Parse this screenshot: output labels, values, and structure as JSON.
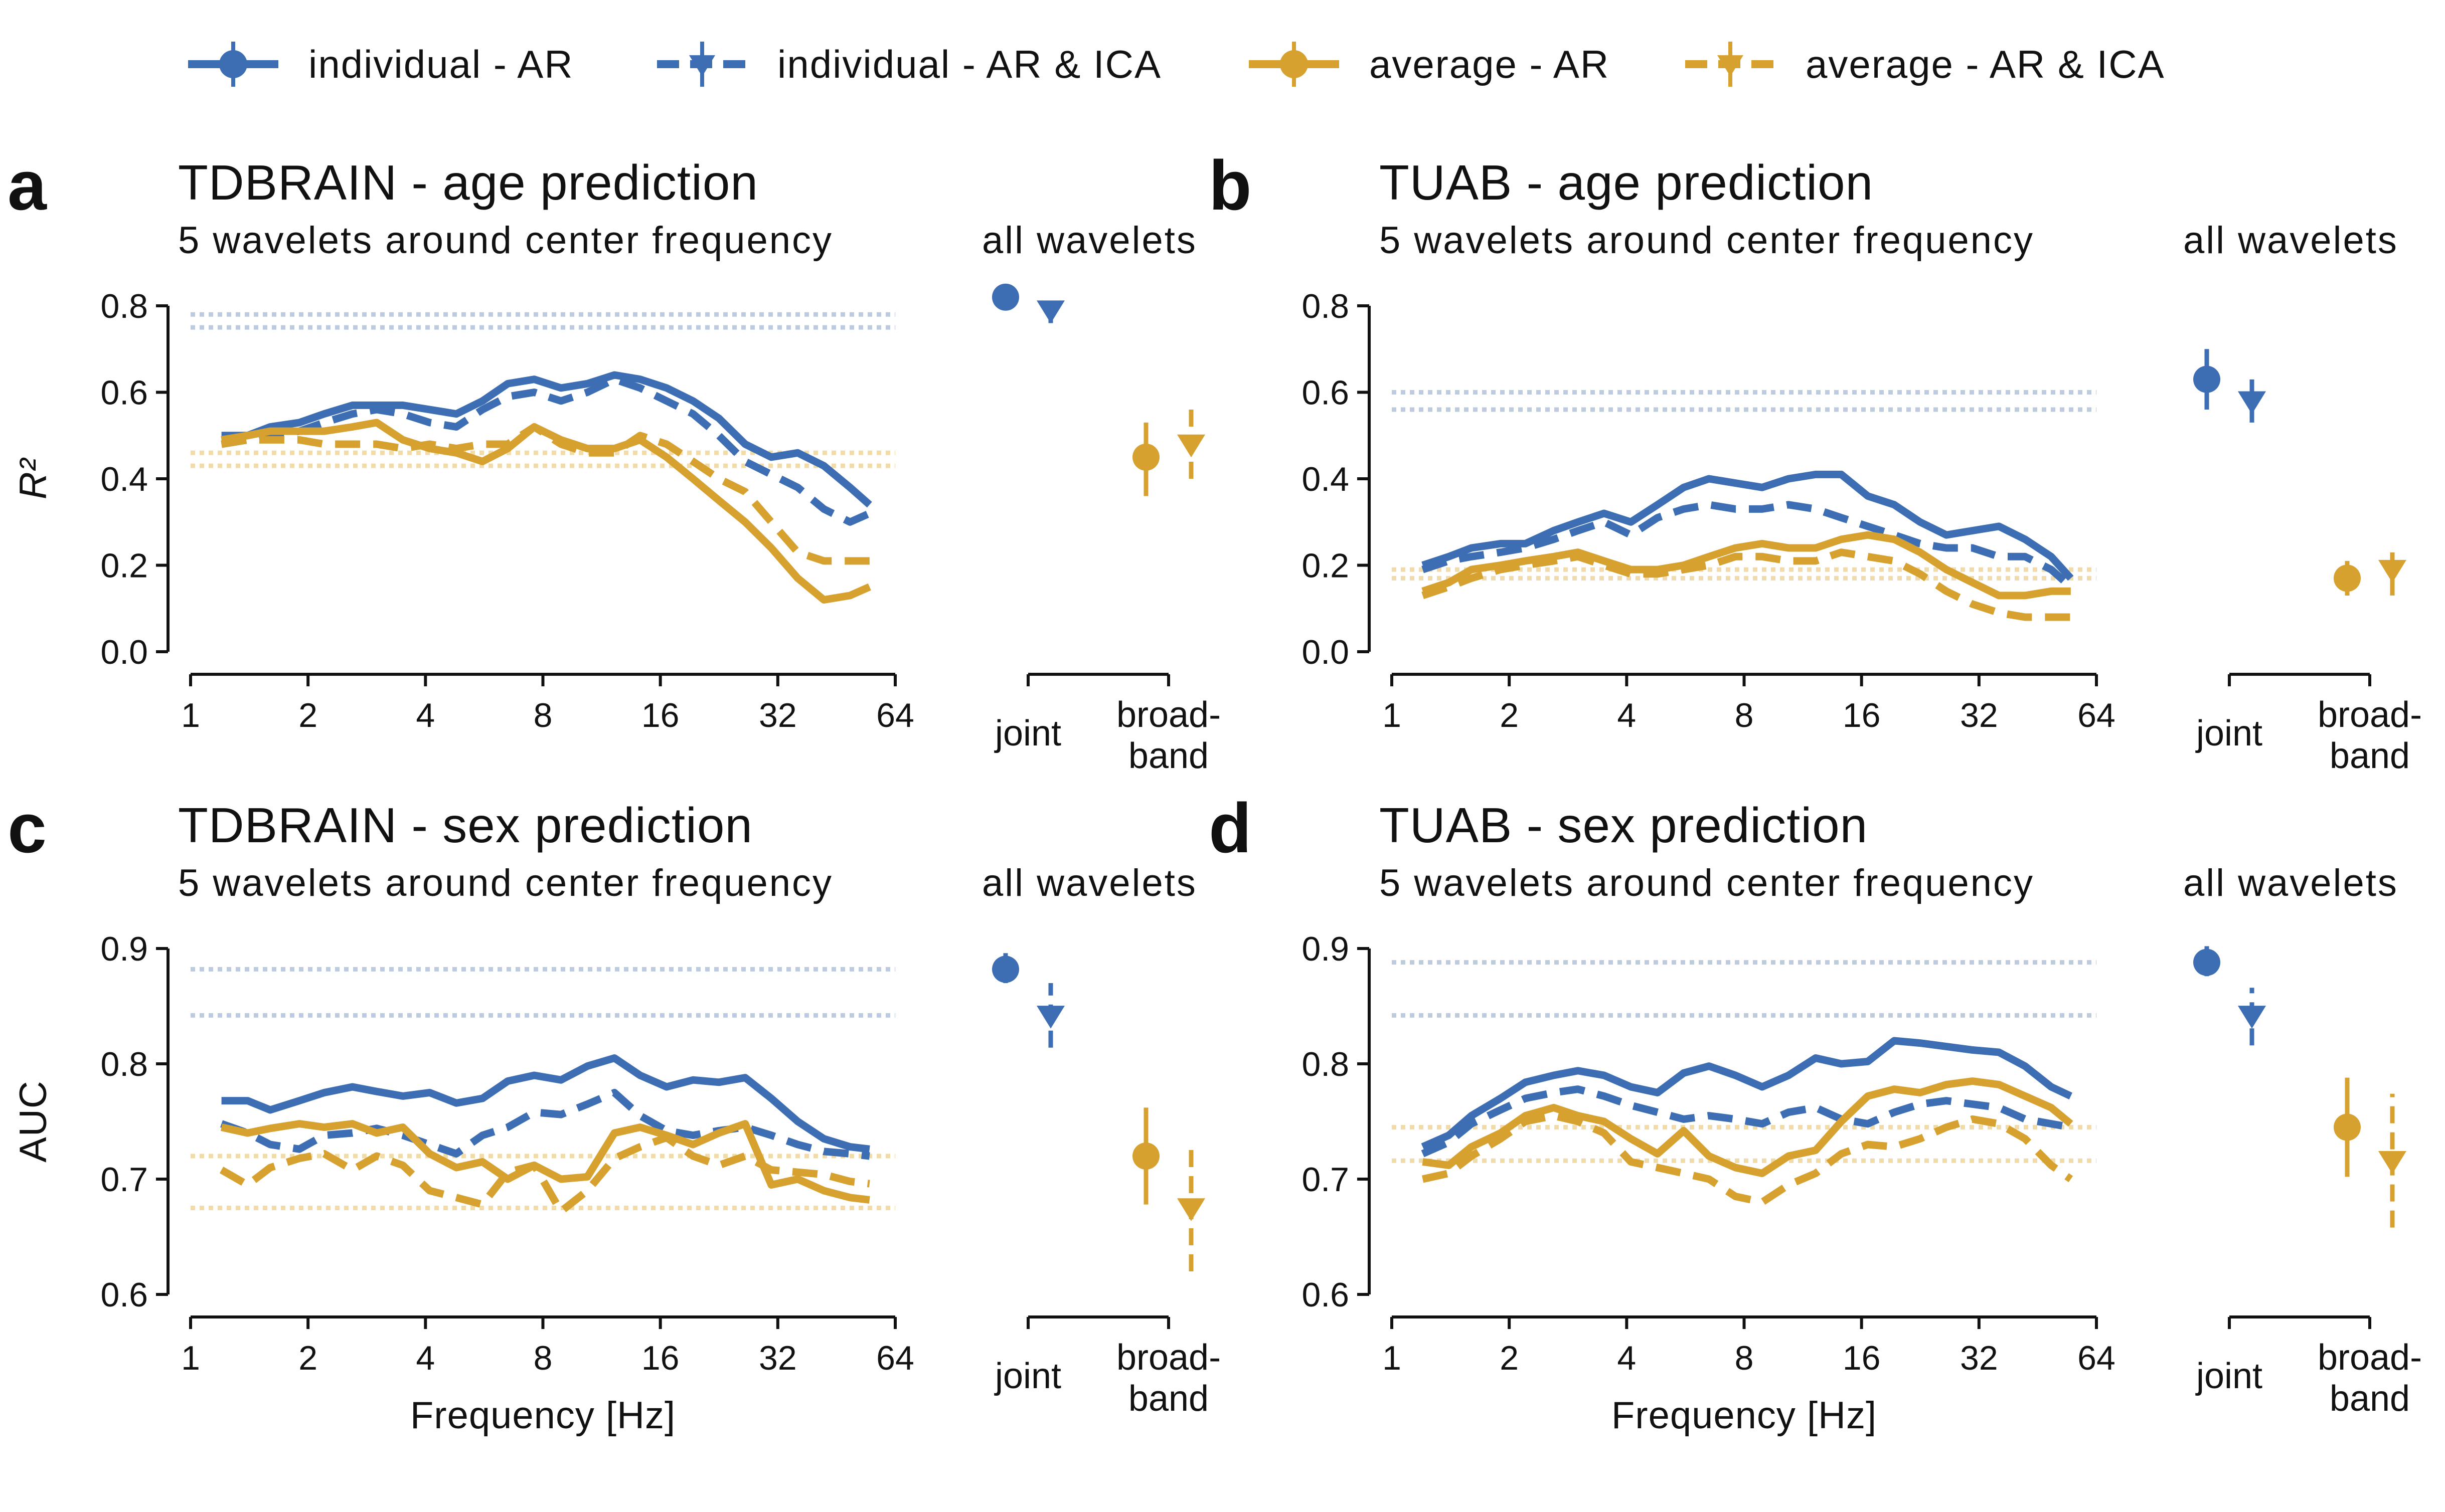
{
  "legend": {
    "items": [
      {
        "label": "individual - AR",
        "color": "#3d6eb4",
        "dash": "solid",
        "marker": "circle"
      },
      {
        "label": "individual - AR & ICA",
        "color": "#3d6eb4",
        "dash": "dashed",
        "marker": "triangle"
      },
      {
        "label": "average - AR",
        "color": "#d6a12f",
        "dash": "solid",
        "marker": "circle"
      },
      {
        "label": "average - AR & ICA",
        "color": "#d6a12f",
        "dash": "dashed",
        "marker": "triangle"
      }
    ]
  },
  "colors": {
    "individual": "#3d6eb4",
    "average": "#d6a12f",
    "individual_reference": "#bccbe0",
    "average_reference": "#f1dca9"
  },
  "common": {
    "subtitle_left": "5 wavelets around center frequency",
    "subtitle_right": "all wavelets",
    "xlabel": "Frequency [Hz]",
    "categories": [
      "joint",
      "broad-band"
    ],
    "category_lines": [
      [
        "joint"
      ],
      [
        "broad-",
        "band"
      ]
    ]
  },
  "chart_data": [
    {
      "panel": "a",
      "type": "line",
      "title": "TDBRAIN - age prediction",
      "ylabel": "R²",
      "xscale": "log2",
      "xlim": [
        1,
        64
      ],
      "xticks": [
        1,
        2,
        4,
        8,
        16,
        32,
        64
      ],
      "xtick_labels": [
        "1",
        "2",
        "4",
        "8",
        "16",
        "32",
        "64"
      ],
      "ylim": [
        0,
        0.8
      ],
      "yticks": [
        0.0,
        0.2,
        0.4,
        0.6,
        0.8
      ],
      "ytick_labels": [
        "0.0",
        "0.2",
        "0.4",
        "0.6",
        "0.8"
      ],
      "x": [
        1.2,
        1.4,
        1.6,
        1.9,
        2.2,
        2.6,
        3.0,
        3.5,
        4.1,
        4.8,
        5.6,
        6.5,
        7.6,
        8.9,
        10.4,
        12.2,
        14.2,
        16.6,
        19.4,
        22.6,
        26.4,
        30.8,
        36.0,
        42.0,
        49.0,
        55.0
      ],
      "series": [
        {
          "name": "individual - AR",
          "values": [
            0.5,
            0.5,
            0.52,
            0.53,
            0.55,
            0.57,
            0.57,
            0.57,
            0.56,
            0.55,
            0.58,
            0.62,
            0.63,
            0.61,
            0.62,
            0.64,
            0.63,
            0.61,
            0.58,
            0.54,
            0.48,
            0.45,
            0.46,
            0.43,
            0.38,
            0.34
          ]
        },
        {
          "name": "individual - AR & ICA",
          "values": [
            0.48,
            0.49,
            0.5,
            0.51,
            0.53,
            0.55,
            0.56,
            0.55,
            0.53,
            0.52,
            0.56,
            0.59,
            0.6,
            0.58,
            0.6,
            0.63,
            0.61,
            0.58,
            0.55,
            0.5,
            0.44,
            0.41,
            0.38,
            0.33,
            0.3,
            0.32
          ]
        },
        {
          "name": "average - AR",
          "values": [
            0.49,
            0.5,
            0.51,
            0.51,
            0.51,
            0.52,
            0.53,
            0.49,
            0.47,
            0.46,
            0.44,
            0.47,
            0.52,
            0.49,
            0.47,
            0.47,
            0.49,
            0.45,
            0.4,
            0.35,
            0.3,
            0.24,
            0.17,
            0.12,
            0.13,
            0.15
          ]
        },
        {
          "name": "average - AR & ICA",
          "values": [
            0.48,
            0.49,
            0.49,
            0.49,
            0.48,
            0.48,
            0.48,
            0.47,
            0.48,
            0.47,
            0.48,
            0.48,
            0.52,
            0.48,
            0.46,
            0.46,
            0.5,
            0.48,
            0.44,
            0.4,
            0.37,
            0.3,
            0.23,
            0.21,
            0.21,
            0.21
          ]
        }
      ],
      "reference_lines": [
        {
          "group": "individual",
          "value": 0.78
        },
        {
          "group": "individual",
          "value": 0.75
        },
        {
          "group": "average",
          "value": 0.46
        },
        {
          "group": "average",
          "value": 0.43
        }
      ],
      "all_wavelets": {
        "ylim": [
          0,
          0.8
        ],
        "points": [
          {
            "name": "individual - AR",
            "category": "joint",
            "value": 0.82,
            "err_low": 0.8,
            "err_high": 0.84
          },
          {
            "name": "individual - AR & ICA",
            "category": "joint",
            "value": 0.79,
            "err_low": 0.76,
            "err_high": 0.82
          },
          {
            "name": "average - AR",
            "category": "broad-band",
            "value": 0.45,
            "err_low": 0.36,
            "err_high": 0.53
          },
          {
            "name": "average - AR & ICA",
            "category": "broad-band",
            "value": 0.48,
            "err_low": 0.4,
            "err_high": 0.56
          }
        ]
      }
    },
    {
      "panel": "b",
      "type": "line",
      "title": "TUAB - age prediction",
      "ylabel": "",
      "xscale": "log2",
      "xlim": [
        1,
        64
      ],
      "xticks": [
        1,
        2,
        4,
        8,
        16,
        32,
        64
      ],
      "xtick_labels": [
        "1",
        "2",
        "4",
        "8",
        "16",
        "32",
        "64"
      ],
      "ylim": [
        0,
        0.8
      ],
      "yticks": [
        0.0,
        0.2,
        0.4,
        0.6,
        0.8
      ],
      "ytick_labels": [
        "0.0",
        "0.2",
        "0.4",
        "0.6",
        "0.8"
      ],
      "x": [
        1.2,
        1.4,
        1.6,
        1.9,
        2.2,
        2.6,
        3.0,
        3.5,
        4.1,
        4.8,
        5.6,
        6.5,
        7.6,
        8.9,
        10.4,
        12.2,
        14.2,
        16.6,
        19.4,
        22.6,
        26.4,
        30.8,
        36.0,
        42.0,
        49.0,
        55.0
      ],
      "series": [
        {
          "name": "individual - AR",
          "values": [
            0.2,
            0.22,
            0.24,
            0.25,
            0.25,
            0.28,
            0.3,
            0.32,
            0.3,
            0.34,
            0.38,
            0.4,
            0.39,
            0.38,
            0.4,
            0.41,
            0.41,
            0.36,
            0.34,
            0.3,
            0.27,
            0.28,
            0.29,
            0.26,
            0.22,
            0.17
          ]
        },
        {
          "name": "individual - AR & ICA",
          "values": [
            0.19,
            0.21,
            0.22,
            0.23,
            0.24,
            0.26,
            0.28,
            0.3,
            0.27,
            0.31,
            0.33,
            0.34,
            0.33,
            0.33,
            0.34,
            0.33,
            0.31,
            0.29,
            0.27,
            0.25,
            0.24,
            0.24,
            0.22,
            0.22,
            0.19,
            0.15
          ]
        },
        {
          "name": "average - AR",
          "values": [
            0.14,
            0.16,
            0.19,
            0.2,
            0.21,
            0.22,
            0.23,
            0.21,
            0.19,
            0.19,
            0.2,
            0.22,
            0.24,
            0.25,
            0.24,
            0.24,
            0.26,
            0.27,
            0.26,
            0.23,
            0.19,
            0.16,
            0.13,
            0.13,
            0.14,
            0.14
          ]
        },
        {
          "name": "average - AR & ICA",
          "values": [
            0.13,
            0.15,
            0.17,
            0.19,
            0.2,
            0.21,
            0.22,
            0.2,
            0.18,
            0.18,
            0.19,
            0.2,
            0.22,
            0.22,
            0.21,
            0.21,
            0.23,
            0.22,
            0.21,
            0.18,
            0.14,
            0.11,
            0.09,
            0.08,
            0.08,
            0.08
          ]
        }
      ],
      "reference_lines": [
        {
          "group": "individual",
          "value": 0.6
        },
        {
          "group": "individual",
          "value": 0.56
        },
        {
          "group": "average",
          "value": 0.19
        },
        {
          "group": "average",
          "value": 0.17
        }
      ],
      "all_wavelets": {
        "ylim": [
          0,
          0.8
        ],
        "points": [
          {
            "name": "individual - AR",
            "category": "joint",
            "value": 0.63,
            "err_low": 0.56,
            "err_high": 0.7
          },
          {
            "name": "individual - AR & ICA",
            "category": "joint",
            "value": 0.58,
            "err_low": 0.53,
            "err_high": 0.64
          },
          {
            "name": "average - AR",
            "category": "broad-band",
            "value": 0.17,
            "err_low": 0.13,
            "err_high": 0.21
          },
          {
            "name": "average - AR & ICA",
            "category": "broad-band",
            "value": 0.19,
            "err_low": 0.13,
            "err_high": 0.25
          }
        ]
      }
    },
    {
      "panel": "c",
      "type": "line",
      "title": "TDBRAIN - sex prediction",
      "ylabel": "AUC",
      "xlabel": "Frequency [Hz]",
      "xscale": "log2",
      "xlim": [
        1,
        64
      ],
      "xticks": [
        1,
        2,
        4,
        8,
        16,
        32,
        64
      ],
      "xtick_labels": [
        "1",
        "2",
        "4",
        "8",
        "16",
        "32",
        "64"
      ],
      "ylim": [
        0.6,
        0.9
      ],
      "yticks": [
        0.6,
        0.7,
        0.8,
        0.9
      ],
      "ytick_labels": [
        "0.6",
        "0.7",
        "0.8",
        "0.9"
      ],
      "x": [
        1.2,
        1.4,
        1.6,
        1.9,
        2.2,
        2.6,
        3.0,
        3.5,
        4.1,
        4.8,
        5.6,
        6.5,
        7.6,
        8.9,
        10.4,
        12.2,
        14.2,
        16.6,
        19.4,
        22.6,
        26.4,
        30.8,
        36.0,
        42.0,
        49.0,
        55.0
      ],
      "series": [
        {
          "name": "individual - AR",
          "values": [
            0.768,
            0.768,
            0.76,
            0.768,
            0.775,
            0.78,
            0.776,
            0.772,
            0.775,
            0.766,
            0.77,
            0.785,
            0.79,
            0.786,
            0.798,
            0.805,
            0.79,
            0.78,
            0.786,
            0.784,
            0.788,
            0.77,
            0.75,
            0.735,
            0.728,
            0.726
          ]
        },
        {
          "name": "individual - AR & ICA",
          "values": [
            0.748,
            0.74,
            0.73,
            0.726,
            0.738,
            0.74,
            0.744,
            0.738,
            0.73,
            0.722,
            0.738,
            0.745,
            0.758,
            0.756,
            0.765,
            0.775,
            0.755,
            0.742,
            0.738,
            0.742,
            0.745,
            0.738,
            0.73,
            0.724,
            0.722,
            0.72
          ]
        },
        {
          "name": "average - AR",
          "values": [
            0.745,
            0.74,
            0.744,
            0.748,
            0.745,
            0.748,
            0.74,
            0.745,
            0.722,
            0.71,
            0.715,
            0.7,
            0.712,
            0.7,
            0.702,
            0.74,
            0.745,
            0.738,
            0.73,
            0.74,
            0.748,
            0.695,
            0.7,
            0.69,
            0.684,
            0.682
          ]
        },
        {
          "name": "average - AR & ICA",
          "values": [
            0.708,
            0.695,
            0.71,
            0.718,
            0.722,
            0.708,
            0.72,
            0.712,
            0.69,
            0.684,
            0.678,
            0.706,
            0.712,
            0.672,
            0.69,
            0.718,
            0.728,
            0.736,
            0.72,
            0.712,
            0.72,
            0.708,
            0.706,
            0.704,
            0.698,
            0.696
          ]
        }
      ],
      "reference_lines": [
        {
          "group": "individual",
          "value": 0.882
        },
        {
          "group": "individual",
          "value": 0.842
        },
        {
          "group": "average",
          "value": 0.72
        },
        {
          "group": "average",
          "value": 0.675
        }
      ],
      "all_wavelets": {
        "ylim": [
          0.6,
          0.9
        ],
        "points": [
          {
            "name": "individual - AR",
            "category": "joint",
            "value": 0.882,
            "err_low": 0.87,
            "err_high": 0.896
          },
          {
            "name": "individual - AR & ICA",
            "category": "joint",
            "value": 0.842,
            "err_low": 0.814,
            "err_high": 0.87
          },
          {
            "name": "average - AR",
            "category": "broad-band",
            "value": 0.72,
            "err_low": 0.678,
            "err_high": 0.762
          },
          {
            "name": "average - AR & ICA",
            "category": "broad-band",
            "value": 0.675,
            "err_low": 0.62,
            "err_high": 0.73
          }
        ]
      }
    },
    {
      "panel": "d",
      "type": "line",
      "title": "TUAB - sex prediction",
      "ylabel": "",
      "xlabel": "Frequency [Hz]",
      "xscale": "log2",
      "xlim": [
        1,
        64
      ],
      "xticks": [
        1,
        2,
        4,
        8,
        16,
        32,
        64
      ],
      "xtick_labels": [
        "1",
        "2",
        "4",
        "8",
        "16",
        "32",
        "64"
      ],
      "ylim": [
        0.6,
        0.9
      ],
      "yticks": [
        0.6,
        0.7,
        0.8,
        0.9
      ],
      "ytick_labels": [
        "0.6",
        "0.7",
        "0.8",
        "0.9"
      ],
      "x": [
        1.2,
        1.4,
        1.6,
        1.9,
        2.2,
        2.6,
        3.0,
        3.5,
        4.1,
        4.8,
        5.6,
        6.5,
        7.6,
        8.9,
        10.4,
        12.2,
        14.2,
        16.6,
        19.4,
        22.6,
        26.4,
        30.8,
        36.0,
        42.0,
        49.0,
        55.0
      ],
      "series": [
        {
          "name": "individual - AR",
          "values": [
            0.728,
            0.738,
            0.755,
            0.77,
            0.784,
            0.79,
            0.794,
            0.79,
            0.78,
            0.775,
            0.792,
            0.798,
            0.79,
            0.78,
            0.79,
            0.805,
            0.8,
            0.802,
            0.82,
            0.818,
            0.815,
            0.812,
            0.81,
            0.798,
            0.78,
            0.772
          ]
        },
        {
          "name": "individual - AR & ICA",
          "values": [
            0.722,
            0.732,
            0.748,
            0.76,
            0.77,
            0.775,
            0.778,
            0.772,
            0.764,
            0.758,
            0.752,
            0.755,
            0.752,
            0.748,
            0.758,
            0.762,
            0.752,
            0.748,
            0.758,
            0.765,
            0.768,
            0.765,
            0.762,
            0.752,
            0.748,
            0.745
          ]
        },
        {
          "name": "average - AR",
          "values": [
            0.715,
            0.712,
            0.728,
            0.74,
            0.755,
            0.762,
            0.755,
            0.75,
            0.735,
            0.722,
            0.742,
            0.72,
            0.71,
            0.705,
            0.72,
            0.725,
            0.75,
            0.772,
            0.778,
            0.775,
            0.782,
            0.785,
            0.782,
            0.772,
            0.762,
            0.748
          ]
        },
        {
          "name": "average - AR & ICA",
          "values": [
            0.7,
            0.705,
            0.72,
            0.735,
            0.75,
            0.755,
            0.75,
            0.74,
            0.715,
            0.71,
            0.705,
            0.7,
            0.685,
            0.68,
            0.695,
            0.705,
            0.722,
            0.73,
            0.728,
            0.735,
            0.745,
            0.752,
            0.748,
            0.735,
            0.712,
            0.7
          ]
        }
      ],
      "reference_lines": [
        {
          "group": "individual",
          "value": 0.888
        },
        {
          "group": "individual",
          "value": 0.842
        },
        {
          "group": "average",
          "value": 0.745
        },
        {
          "group": "average",
          "value": 0.716
        }
      ],
      "all_wavelets": {
        "ylim": [
          0.6,
          0.9
        ],
        "points": [
          {
            "name": "individual - AR",
            "category": "joint",
            "value": 0.888,
            "err_low": 0.876,
            "err_high": 0.902
          },
          {
            "name": "individual - AR & ICA",
            "category": "joint",
            "value": 0.842,
            "err_low": 0.816,
            "err_high": 0.866
          },
          {
            "name": "average - AR",
            "category": "broad-band",
            "value": 0.745,
            "err_low": 0.702,
            "err_high": 0.788
          },
          {
            "name": "average - AR & ICA",
            "category": "broad-band",
            "value": 0.716,
            "err_low": 0.658,
            "err_high": 0.774
          }
        ]
      }
    }
  ]
}
